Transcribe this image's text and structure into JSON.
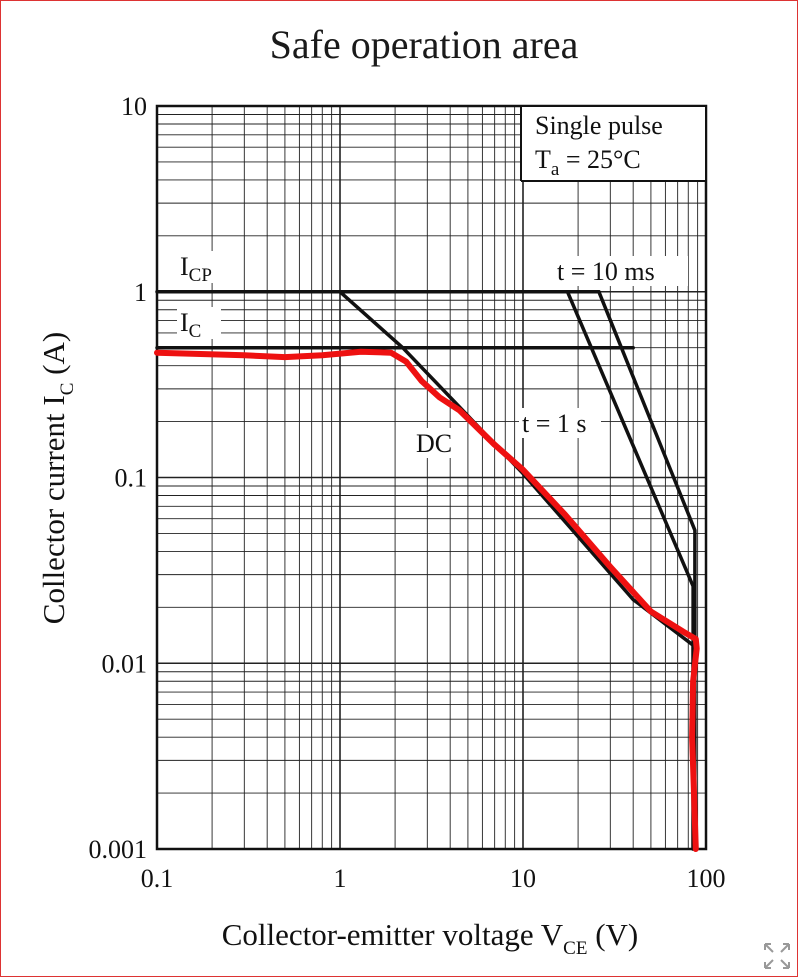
{
  "chart_data": {
    "type": "line",
    "title": "Safe operation area",
    "xlabel": {
      "main": "Collector-emitter voltage  V",
      "sub": "CE",
      "unit": "(V)"
    },
    "ylabel": {
      "main": "Collector current  I",
      "sub": "C",
      "unit": "(A)"
    },
    "xscale": "log",
    "yscale": "log",
    "xlim": [
      0.1,
      100
    ],
    "ylim": [
      0.001,
      10
    ],
    "x_ticks": [
      0.1,
      1,
      10,
      100
    ],
    "x_tick_labels": [
      "0.1",
      "1",
      "10",
      "100"
    ],
    "y_ticks": [
      0.001,
      0.01,
      0.1,
      1,
      10
    ],
    "y_tick_labels": [
      "0.001",
      "0.01",
      "0.1",
      "1",
      "10"
    ],
    "grid": true,
    "conditions": {
      "line1": "Single pulse",
      "line2_main": "T",
      "line2_sub": "a",
      "line2_rest": " = 25°C"
    },
    "series": [
      {
        "name": "ICP",
        "label_main": "I",
        "label_sub": "CP",
        "x": [
          0.1,
          26
        ],
        "y": [
          1.0,
          1.0
        ],
        "color": "#111111"
      },
      {
        "name": "IC",
        "label_main": "I",
        "label_sub": "C",
        "x": [
          0.1,
          40
        ],
        "y": [
          0.5,
          0.5
        ],
        "color": "#111111"
      },
      {
        "name": "DC",
        "label": "DC",
        "x": [
          1.0,
          2.2,
          4.5,
          10,
          40,
          85,
          85
        ],
        "y": [
          1.0,
          0.5,
          0.24,
          0.105,
          0.022,
          0.0125,
          0.001
        ],
        "color": "#111111"
      },
      {
        "name": "t = 1 s",
        "label": "t = 1 s",
        "x": [
          17.5,
          85,
          85
        ],
        "y": [
          1.0,
          0.026,
          0.001
        ],
        "color": "#111111"
      },
      {
        "name": "t = 10 ms",
        "label": "t = 10 ms",
        "x": [
          26,
          87,
          87
        ],
        "y": [
          1.0,
          0.052,
          0.001
        ],
        "color": "#111111"
      },
      {
        "color": "#ee1111",
        "x": [
          0.1,
          0.3,
          0.5,
          0.8,
          1.3,
          1.9,
          2.3,
          2.8,
          3.5,
          4.5,
          7,
          10,
          17,
          30,
          50,
          75,
          88,
          89,
          85,
          84,
          86,
          88
        ],
        "y": [
          0.47,
          0.455,
          0.445,
          0.455,
          0.475,
          0.47,
          0.42,
          0.33,
          0.27,
          0.23,
          0.15,
          0.11,
          0.063,
          0.033,
          0.019,
          0.0148,
          0.0135,
          0.012,
          0.008,
          0.004,
          0.002,
          0.001
        ]
      }
    ]
  }
}
